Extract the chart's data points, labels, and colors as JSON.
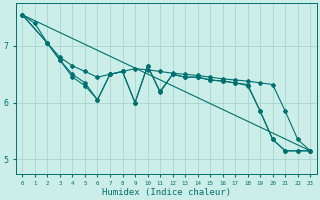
{
  "xlabel": "Humidex (Indice chaleur)",
  "bg_color": "#cceee8",
  "grid_color": "#aad4ce",
  "line_color": "#007070",
  "xlim": [
    -0.5,
    23.5
  ],
  "ylim": [
    4.75,
    7.75
  ],
  "yticks": [
    5,
    6,
    7
  ],
  "xticks": [
    0,
    1,
    2,
    3,
    4,
    5,
    6,
    7,
    8,
    9,
    10,
    11,
    12,
    13,
    14,
    15,
    16,
    17,
    18,
    19,
    20,
    21,
    22,
    23
  ],
  "series": [
    {
      "x": [
        0,
        23
      ],
      "y": [
        7.55,
        5.15
      ],
      "has_markers": false
    },
    {
      "x": [
        0,
        1,
        2,
        3,
        4,
        5,
        6,
        7,
        8,
        9,
        10,
        11,
        12,
        13,
        14,
        15,
        16,
        17,
        18,
        19,
        20,
        21,
        22,
        23
      ],
      "y": [
        7.55,
        7.4,
        7.05,
        6.8,
        6.65,
        6.55,
        6.45,
        6.5,
        6.55,
        6.6,
        6.58,
        6.55,
        6.52,
        6.5,
        6.48,
        6.45,
        6.42,
        6.4,
        6.38,
        6.35,
        6.32,
        5.85,
        5.35,
        5.15
      ],
      "has_markers": true
    },
    {
      "x": [
        0,
        2,
        3,
        4,
        5,
        6,
        7,
        8,
        9,
        10,
        11,
        12,
        13,
        14,
        15,
        16,
        17,
        18,
        19,
        20,
        21,
        22,
        23
      ],
      "y": [
        7.55,
        7.05,
        6.75,
        6.5,
        6.35,
        6.05,
        6.5,
        6.55,
        6.0,
        6.65,
        6.2,
        6.5,
        6.45,
        6.45,
        6.4,
        6.38,
        6.35,
        6.32,
        5.85,
        5.35,
        5.15,
        5.15,
        5.15
      ],
      "has_markers": true
    },
    {
      "x": [
        0,
        2,
        3,
        4,
        5,
        6,
        7,
        8,
        9,
        10,
        11,
        12,
        13,
        14,
        15,
        16,
        17,
        18,
        19,
        20,
        21,
        22,
        23
      ],
      "y": [
        7.55,
        7.05,
        6.75,
        6.45,
        6.3,
        6.05,
        6.5,
        6.55,
        6.0,
        6.65,
        6.18,
        6.5,
        6.45,
        6.45,
        6.4,
        6.38,
        6.35,
        6.3,
        5.85,
        5.35,
        5.15,
        5.15,
        5.15
      ],
      "has_markers": true
    }
  ],
  "marker": "D",
  "marker_size": 2.0,
  "line_width": 0.8
}
